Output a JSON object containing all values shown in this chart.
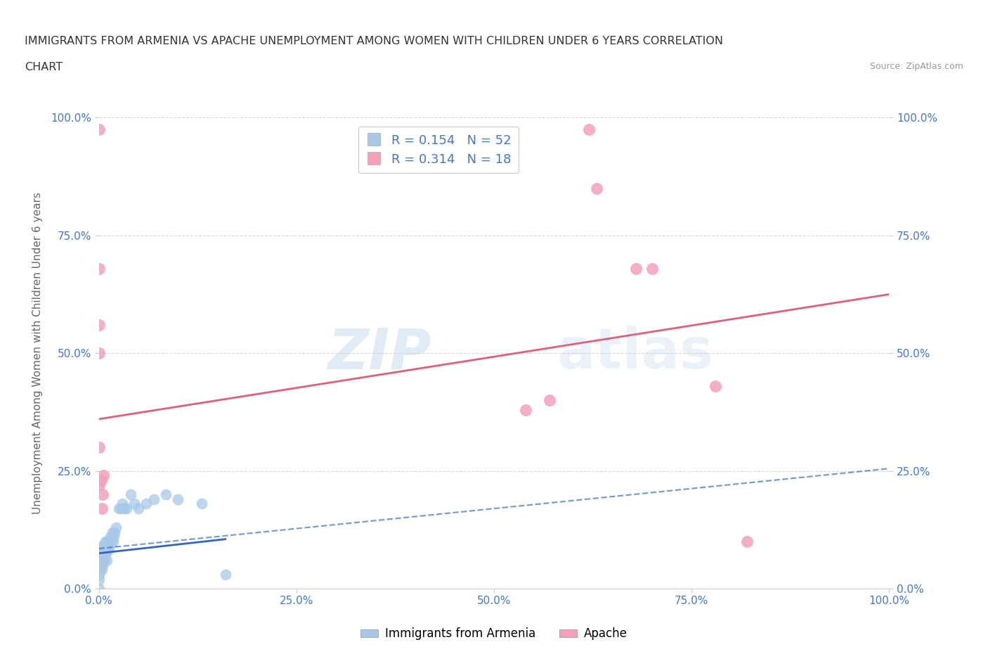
{
  "title_line1": "IMMIGRANTS FROM ARMENIA VS APACHE UNEMPLOYMENT AMONG WOMEN WITH CHILDREN UNDER 6 YEARS CORRELATION",
  "title_line2": "CHART",
  "source": "Source: ZipAtlas.com",
  "ylabel": "Unemployment Among Women with Children Under 6 years",
  "xlim": [
    0.0,
    1.0
  ],
  "ylim": [
    0.0,
    1.0
  ],
  "xtick_labels": [
    "0.0%",
    "25.0%",
    "50.0%",
    "75.0%",
    "100.0%"
  ],
  "xtick_vals": [
    0.0,
    0.25,
    0.5,
    0.75,
    1.0
  ],
  "ytick_labels": [
    "0.0%",
    "25.0%",
    "50.0%",
    "75.0%",
    "100.0%"
  ],
  "ytick_vals": [
    0.0,
    0.25,
    0.5,
    0.75,
    1.0
  ],
  "blue_scatter_x": [
    0.0,
    0.0,
    0.0,
    0.0,
    0.0,
    0.0,
    0.0,
    0.0,
    0.0,
    0.0,
    0.002,
    0.002,
    0.003,
    0.003,
    0.004,
    0.004,
    0.005,
    0.005,
    0.006,
    0.006,
    0.007,
    0.007,
    0.008,
    0.008,
    0.009,
    0.01,
    0.01,
    0.011,
    0.012,
    0.013,
    0.014,
    0.015,
    0.016,
    0.017,
    0.018,
    0.019,
    0.02,
    0.022,
    0.025,
    0.028,
    0.03,
    0.032,
    0.035,
    0.04,
    0.045,
    0.05,
    0.06,
    0.07,
    0.085,
    0.1,
    0.13,
    0.16
  ],
  "blue_scatter_y": [
    0.0,
    0.02,
    0.03,
    0.04,
    0.05,
    0.05,
    0.06,
    0.07,
    0.08,
    0.09,
    0.04,
    0.06,
    0.05,
    0.08,
    0.04,
    0.07,
    0.05,
    0.09,
    0.06,
    0.08,
    0.06,
    0.09,
    0.07,
    0.1,
    0.08,
    0.06,
    0.1,
    0.08,
    0.09,
    0.1,
    0.09,
    0.11,
    0.1,
    0.12,
    0.1,
    0.11,
    0.12,
    0.13,
    0.17,
    0.17,
    0.18,
    0.17,
    0.17,
    0.2,
    0.18,
    0.17,
    0.18,
    0.19,
    0.2,
    0.19,
    0.18,
    0.03
  ],
  "pink_scatter_x": [
    0.0,
    0.0,
    0.0,
    0.0,
    0.0,
    0.0,
    0.003,
    0.004,
    0.005,
    0.006,
    0.54,
    0.57,
    0.62,
    0.63,
    0.68,
    0.7,
    0.78,
    0.82
  ],
  "pink_scatter_y": [
    0.975,
    0.68,
    0.56,
    0.5,
    0.3,
    0.22,
    0.23,
    0.17,
    0.2,
    0.24,
    0.38,
    0.4,
    0.975,
    0.85,
    0.68,
    0.68,
    0.43,
    0.1
  ],
  "blue_solid_line": {
    "x0": 0.0,
    "x1": 0.16,
    "y0": 0.075,
    "y1": 0.105
  },
  "blue_dashed_line": {
    "x0": 0.0,
    "x1": 1.0,
    "y0": 0.085,
    "y1": 0.255
  },
  "pink_solid_line": {
    "x0": 0.0,
    "x1": 1.0,
    "y0": 0.36,
    "y1": 0.625
  },
  "blue_color": "#a8c8e8",
  "blue_line_color": "#3366bb",
  "pink_color": "#f4a0b8",
  "pink_line_color": "#e0607a",
  "R_blue": "0.154",
  "N_blue": "52",
  "R_pink": "0.314",
  "N_pink": "18",
  "legend_label_blue": "Immigrants from Armenia",
  "legend_label_pink": "Apache",
  "watermark_zip": "ZIP",
  "watermark_atlas": "atlas",
  "background_color": "#ffffff",
  "grid_color": "#d8d8d8",
  "title_color": "#333333",
  "label_color": "#666666",
  "tick_color": "#4477cc",
  "source_color": "#999999"
}
